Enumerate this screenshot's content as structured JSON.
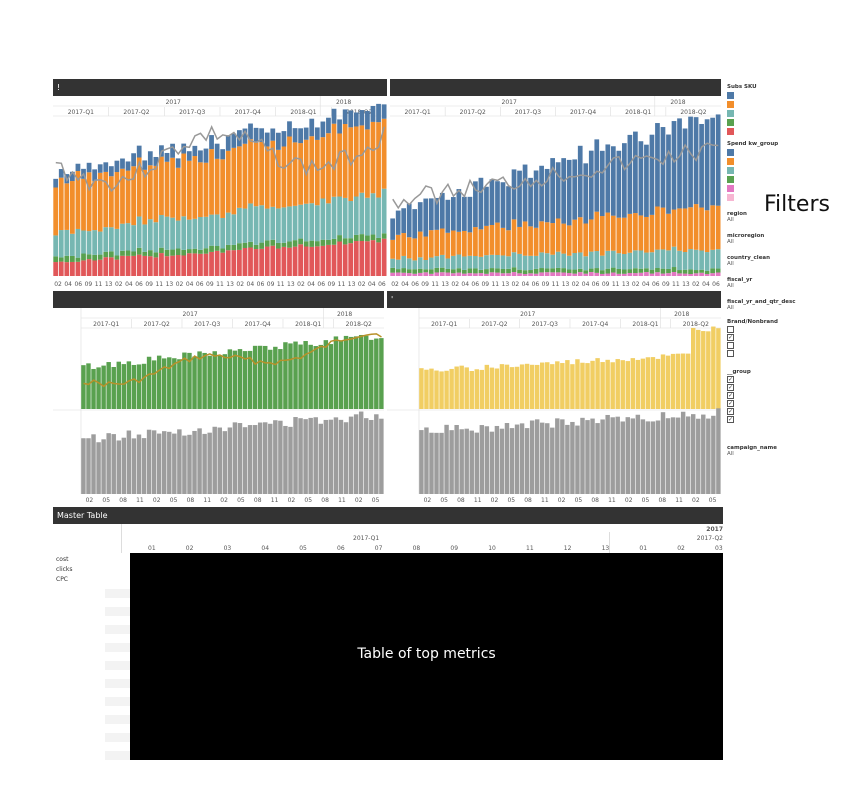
{
  "panels": {
    "top_left": {
      "bar_label": "!",
      "years": [
        "2017",
        "2018"
      ],
      "quarters": [
        "2017-Q1",
        "2017-Q2",
        "2017-Q3",
        "2017-Q4",
        "2018-Q1",
        "2018-Q2"
      ],
      "ticks": [
        "02",
        "04",
        "06",
        "09",
        "11",
        "13",
        "02",
        "04",
        "06",
        "09",
        "11",
        "13",
        "02",
        "04",
        "06",
        "09",
        "11",
        "13",
        "02",
        "04",
        "06",
        "09",
        "11",
        "13",
        "02",
        "04",
        "06",
        "09",
        "11",
        "13",
        "02",
        "04",
        "06"
      ]
    },
    "top_right": {
      "bar_label": "",
      "years": [
        "2017",
        "2018"
      ],
      "quarters": [
        "2017-Q1",
        "2017-Q2",
        "2017-Q3",
        "2017-Q4",
        "2018-Q1",
        "2018-Q2"
      ],
      "ticks": [
        "02",
        "04",
        "06",
        "09",
        "11",
        "13",
        "02",
        "04",
        "06",
        "09",
        "11",
        "13",
        "02",
        "04",
        "06",
        "09",
        "11",
        "13",
        "02",
        "04",
        "06",
        "09",
        "11",
        "13",
        "02",
        "04",
        "06",
        "09",
        "11",
        "13",
        "02",
        "04",
        "06"
      ]
    },
    "mid_left": {
      "bar_label": "",
      "years": [
        "2017",
        "2018"
      ],
      "quarters": [
        "2017-Q1",
        "2017-Q2",
        "2017-Q3",
        "2017-Q4",
        "2018-Q1",
        "2018-Q2"
      ],
      "ticks": [
        "02",
        "05",
        "08",
        "11",
        "02",
        "05",
        "08",
        "11",
        "02",
        "05",
        "08",
        "11",
        "02",
        "05",
        "08",
        "11",
        "02",
        "05"
      ]
    },
    "mid_right": {
      "bar_label": "'",
      "years": [
        "2017",
        "2018"
      ],
      "quarters": [
        "2017-Q1",
        "2017-Q2",
        "2017-Q3",
        "2017-Q4",
        "2018-Q1",
        "2018-Q2"
      ],
      "ticks": [
        "02",
        "05",
        "08",
        "11",
        "02",
        "05",
        "08",
        "11",
        "02",
        "05",
        "08",
        "11",
        "02",
        "05",
        "08",
        "11",
        "02",
        "05"
      ]
    }
  },
  "legend": {
    "subs_title": "Subs SKU",
    "subs_colors": [
      "#4e79a7",
      "#f28e2b",
      "#76b7b2",
      "#59a14f",
      "#e15759"
    ],
    "spend_title": "Spend kw_group",
    "spend_colors": [
      "#4e79a7",
      "#f28e2b",
      "#76b7b2",
      "#59a14f",
      "#e377c2",
      "#f7b6d2"
    ],
    "filters": [
      {
        "name": "region",
        "value": "All"
      },
      {
        "name": "microregion",
        "value": "All"
      },
      {
        "name": "country_clean",
        "value": "All"
      },
      {
        "name": "fiscal_yr",
        "value": "All"
      },
      {
        "name": "fiscal_yr_and_qtr_desc",
        "value": "All"
      }
    ],
    "brand_title": "Brand/Nonbrand",
    "brand_checks": [
      false,
      true,
      false,
      false
    ],
    "group_title": "__group",
    "group_checks": [
      true,
      true,
      true,
      true,
      true,
      true
    ],
    "campaign_title": "campaign_name",
    "campaign_value": "All"
  },
  "filters_annotation": "Filters",
  "master_table": {
    "title": "Master Table",
    "year": "2017",
    "quarter_left": "2017-Q1",
    "quarter_right": "2017-Q2",
    "columns": [
      "01",
      "02",
      "03",
      "04",
      "05",
      "06",
      "07",
      "08",
      "09",
      "10",
      "11",
      "12",
      "13",
      "01",
      "02",
      "03"
    ],
    "rows": [
      "cost",
      "clicks",
      "CPC"
    ],
    "overlay_text": "Table of top metrics"
  },
  "colors": {
    "blue": "#4e79a7",
    "orange": "#f28e2b",
    "teal": "#76b7b2",
    "green": "#59a14f",
    "red": "#e15759",
    "gold": "#f1ce63",
    "grey": "#9d9d9d",
    "line_gold": "#b8912a",
    "line_grey": "#999999"
  }
}
